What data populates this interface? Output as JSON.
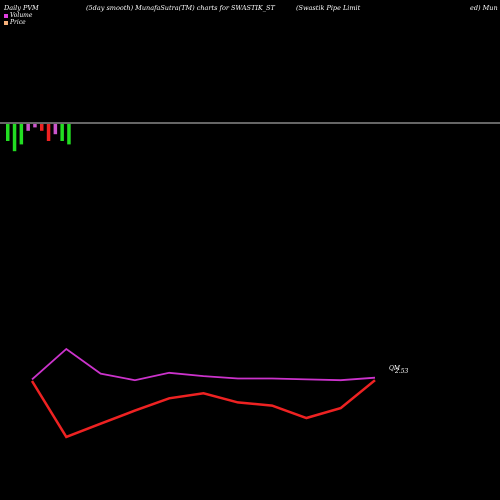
{
  "header": {
    "left": "Daily PVM",
    "center": "(5day smooth) MunafaSutra(TM) charts for SWASTIK_ST",
    "right_a": "(Swastik Pipe   Limit",
    "right_b": "ed) Mun"
  },
  "legend": {
    "volume_label": "Volume",
    "price_label": "Price",
    "volume_color": "#e040e0",
    "price_color": "#f5b07a"
  },
  "colors": {
    "background": "#000000",
    "baseline": "#cccccc",
    "bar_up": "#22dd22",
    "bar_down": "#ee2222",
    "bar_flat": "#cc55cc",
    "volume_line": "#cc33cc",
    "price_line": "#ee2222"
  },
  "chart_data": [
    {
      "type": "bar",
      "title": "",
      "series": [
        {
          "values": [
            -5,
            -8,
            -6,
            -2,
            -1,
            -2,
            -5,
            -3,
            -5,
            -6
          ],
          "colors": [
            "green",
            "green",
            "green",
            "flat",
            "flat",
            "red",
            "red",
            "flat",
            "green",
            "green"
          ]
        }
      ]
    },
    {
      "type": "line",
      "series": [
        {
          "values": [
            374,
            337,
            367,
            375,
            366,
            370,
            373,
            373,
            374,
            375,
            372
          ]
        },
        {
          "values": [
            376,
            444,
            428,
            412,
            397,
            391,
            402,
            406,
            421,
            409,
            375
          ]
        }
      ],
      "tick_labels": [
        "QM",
        "2.53"
      ],
      "ylim": [
        320,
        460
      ]
    }
  ]
}
